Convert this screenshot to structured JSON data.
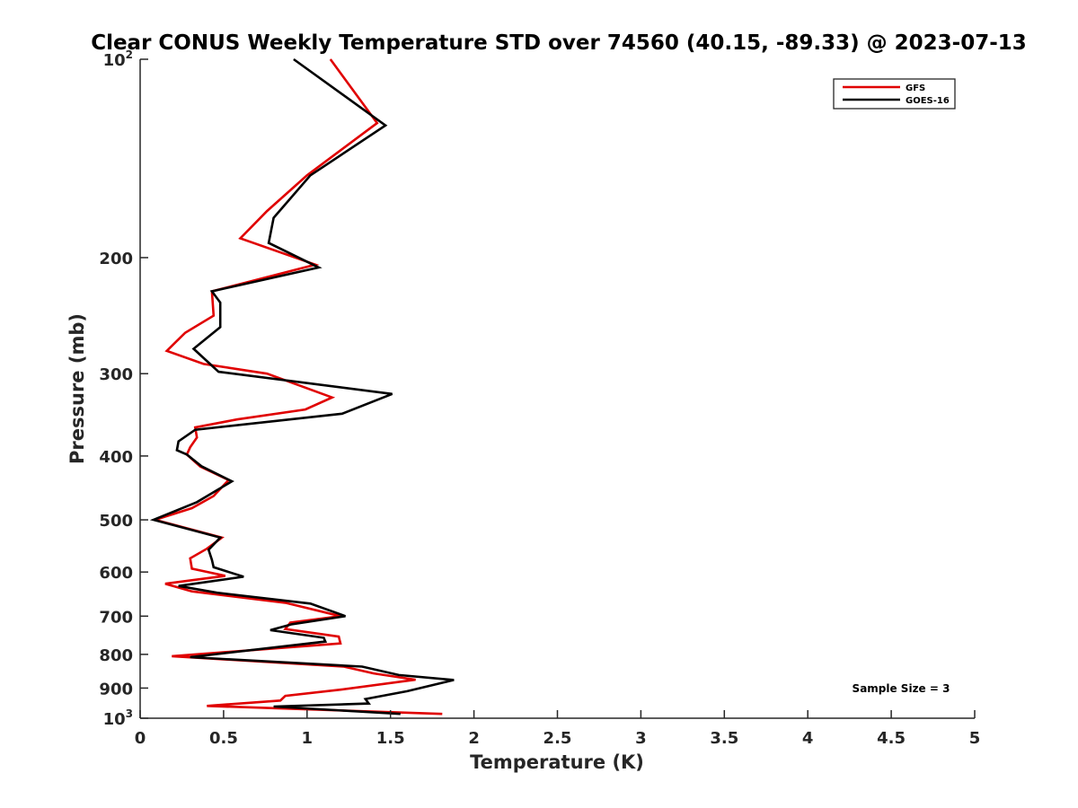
{
  "chart_data": {
    "type": "line",
    "title": "Clear CONUS Weekly Temperature STD over 74560 (40.15, -89.33) @ 2023-07-13",
    "xlabel": "Temperature (K)",
    "ylabel": "Pressure (mb)",
    "xlim": [
      0,
      5
    ],
    "ylim": [
      100,
      1000
    ],
    "yscale": "log",
    "y_reversed": true,
    "grid": false,
    "legend_position": "top-right",
    "x_ticks": [
      0,
      0.5,
      1,
      1.5,
      2,
      2.5,
      3,
      3.5,
      4,
      4.5,
      5
    ],
    "x_tick_labels": [
      "0",
      "0.5",
      "1",
      "1.5",
      "2",
      "2.5",
      "3",
      "3.5",
      "4",
      "4.5",
      "5"
    ],
    "y_ticks": [
      {
        "value": 100,
        "base": "10",
        "exp": "2"
      },
      {
        "value": 200,
        "label": "200"
      },
      {
        "value": 300,
        "label": "300"
      },
      {
        "value": 400,
        "label": "400"
      },
      {
        "value": 500,
        "label": "500"
      },
      {
        "value": 600,
        "label": "600"
      },
      {
        "value": 700,
        "label": "700"
      },
      {
        "value": 800,
        "label": "800"
      },
      {
        "value": 900,
        "label": "900"
      },
      {
        "value": 1000,
        "base": "10",
        "exp": "3"
      }
    ],
    "annotation": "Sample Size = 3",
    "series": [
      {
        "name": "GFS",
        "color": "#e00000",
        "points": [
          [
            1.14,
            100
          ],
          [
            1.42,
            125
          ],
          [
            1.0,
            150
          ],
          [
            0.76,
            170
          ],
          [
            0.6,
            187
          ],
          [
            1.05,
            205
          ],
          [
            0.43,
            225
          ],
          [
            0.44,
            245
          ],
          [
            0.27,
            260
          ],
          [
            0.16,
            277
          ],
          [
            0.38,
            290
          ],
          [
            0.76,
            300
          ],
          [
            1.15,
            326
          ],
          [
            0.99,
            340
          ],
          [
            0.58,
            352
          ],
          [
            0.33,
            362
          ],
          [
            0.34,
            375
          ],
          [
            0.3,
            388
          ],
          [
            0.28,
            398
          ],
          [
            0.36,
            415
          ],
          [
            0.53,
            435
          ],
          [
            0.44,
            460
          ],
          [
            0.31,
            480
          ],
          [
            0.09,
            500
          ],
          [
            0.49,
            532
          ],
          [
            0.4,
            553
          ],
          [
            0.3,
            572
          ],
          [
            0.31,
            593
          ],
          [
            0.51,
            608
          ],
          [
            0.15,
            625
          ],
          [
            0.31,
            642
          ],
          [
            0.87,
            668
          ],
          [
            1.2,
            700
          ],
          [
            0.9,
            716
          ],
          [
            0.87,
            732
          ],
          [
            1.19,
            752
          ],
          [
            1.2,
            770
          ],
          [
            0.19,
            805
          ],
          [
            1.22,
            835
          ],
          [
            1.4,
            855
          ],
          [
            1.65,
            874
          ],
          [
            1.2,
            905
          ],
          [
            0.87,
            925
          ],
          [
            0.84,
            940
          ],
          [
            0.4,
            958
          ],
          [
            1.81,
            985
          ]
        ]
      },
      {
        "name": "GOES-16",
        "color": "#000000",
        "points": [
          [
            0.92,
            100
          ],
          [
            1.47,
            126
          ],
          [
            1.02,
            150
          ],
          [
            0.8,
            174
          ],
          [
            0.77,
            190
          ],
          [
            1.07,
            207
          ],
          [
            0.43,
            225
          ],
          [
            0.48,
            234
          ],
          [
            0.48,
            255
          ],
          [
            0.32,
            275
          ],
          [
            0.47,
            298
          ],
          [
            1.51,
            322
          ],
          [
            1.21,
            345
          ],
          [
            0.33,
            365
          ],
          [
            0.23,
            380
          ],
          [
            0.22,
            392
          ],
          [
            0.28,
            398
          ],
          [
            0.37,
            415
          ],
          [
            0.55,
            437
          ],
          [
            0.34,
            470
          ],
          [
            0.08,
            500
          ],
          [
            0.48,
            532
          ],
          [
            0.41,
            555
          ],
          [
            0.43,
            575
          ],
          [
            0.44,
            590
          ],
          [
            0.62,
            610
          ],
          [
            0.23,
            630
          ],
          [
            0.46,
            645
          ],
          [
            1.02,
            670
          ],
          [
            1.23,
            700
          ],
          [
            0.91,
            720
          ],
          [
            0.78,
            735
          ],
          [
            1.1,
            755
          ],
          [
            1.11,
            765
          ],
          [
            0.3,
            808
          ],
          [
            1.33,
            835
          ],
          [
            1.55,
            860
          ],
          [
            1.88,
            875
          ],
          [
            1.6,
            910
          ],
          [
            1.35,
            935
          ],
          [
            1.37,
            950
          ],
          [
            0.8,
            960
          ],
          [
            1.56,
            985
          ]
        ]
      }
    ]
  }
}
